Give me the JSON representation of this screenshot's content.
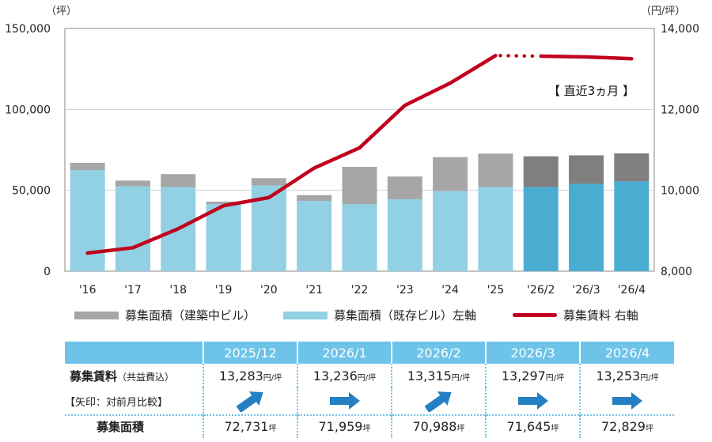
{
  "chart_data": {
    "type": "bar+line",
    "categories": [
      "'16",
      "'17",
      "'18",
      "'19",
      "'20",
      "'21",
      "'22",
      "'23",
      "'24",
      "'25",
      "'26/2",
      "'26/3",
      "'26/4"
    ],
    "series": [
      {
        "name": "募集面積（既存ビル）左軸",
        "type": "stacked-bar",
        "axis": "left",
        "values": [
          62500,
          52500,
          52000,
          41500,
          53000,
          43500,
          41500,
          44500,
          49500,
          52000,
          52000,
          54000,
          55500
        ],
        "color": "#92d0e4",
        "recent_color": "#4bacd2"
      },
      {
        "name": "募集面積（建築中ビル）",
        "type": "stacked-bar",
        "axis": "left",
        "values": [
          4500,
          3500,
          8000,
          1500,
          4500,
          3500,
          23000,
          14000,
          21000,
          20700,
          19000,
          17600,
          17300
        ],
        "color": "#a6a6a6",
        "recent_color": "#7f7f7f"
      },
      {
        "name": "募集賃料 右軸",
        "type": "line",
        "axis": "right",
        "values": [
          8450,
          8580,
          9050,
          9620,
          9820,
          10550,
          11050,
          12100,
          12650,
          13330,
          13315,
          13297,
          13253
        ],
        "color": "#c0001e"
      }
    ],
    "left_axis": {
      "unit": "（坪）",
      "min": 0,
      "max": 150000,
      "ticks": [
        "0",
        "50,000",
        "100,000",
        "150,000"
      ]
    },
    "right_axis": {
      "unit": "（円/坪）",
      "min": 8000,
      "max": 14000,
      "ticks": [
        "8,000",
        "10,000",
        "12,000",
        "14,000"
      ]
    },
    "annotation": "【 直近3ヵ月 】",
    "recent_start_index": 10
  },
  "table": {
    "months": [
      "2025/12",
      "2026/1",
      "2026/2",
      "2026/3",
      "2026/4"
    ],
    "rent_label": "募集賃料",
    "rent_sub_label": "（共益費込）",
    "arrow_label": "【矢印：対前月比較】",
    "area_label": "募集面積",
    "rent_values": [
      "13,283",
      "13,236",
      "13,315",
      "13,297",
      "13,253"
    ],
    "rent_unit": "円/坪",
    "arrow_dirs": [
      "up-right",
      "right",
      "up-right",
      "right",
      "right"
    ],
    "area_values": [
      "72,731",
      "71,959",
      "70,988",
      "71,645",
      "72,829"
    ],
    "area_unit": "坪",
    "arrow_color": "#2580c3"
  }
}
